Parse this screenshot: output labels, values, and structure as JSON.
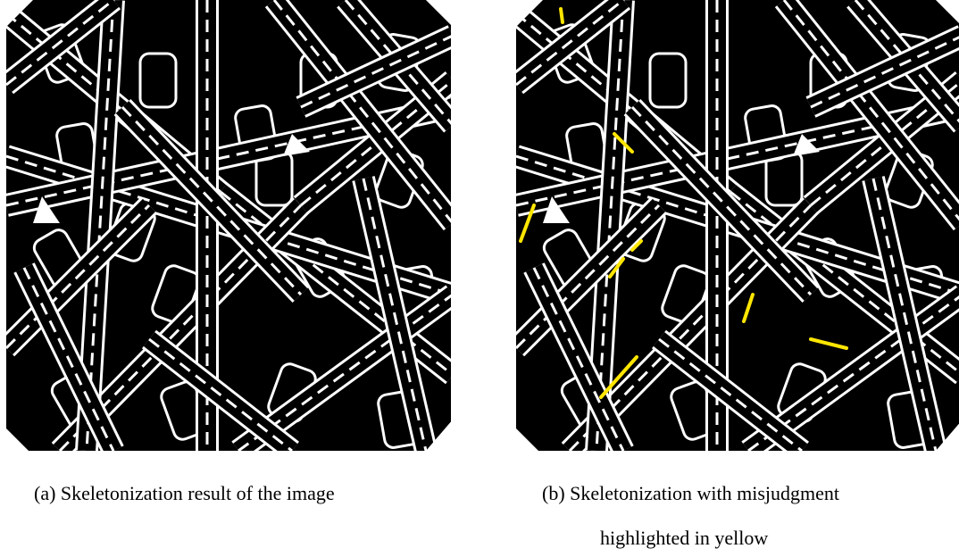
{
  "figures": [
    {
      "caption_lines": [
        "(a) Skeletonization result of the image"
      ]
    },
    {
      "caption_lines": [
        "(b) Skeletonization with misjudgment",
        "highlighted in yellow"
      ]
    }
  ]
}
